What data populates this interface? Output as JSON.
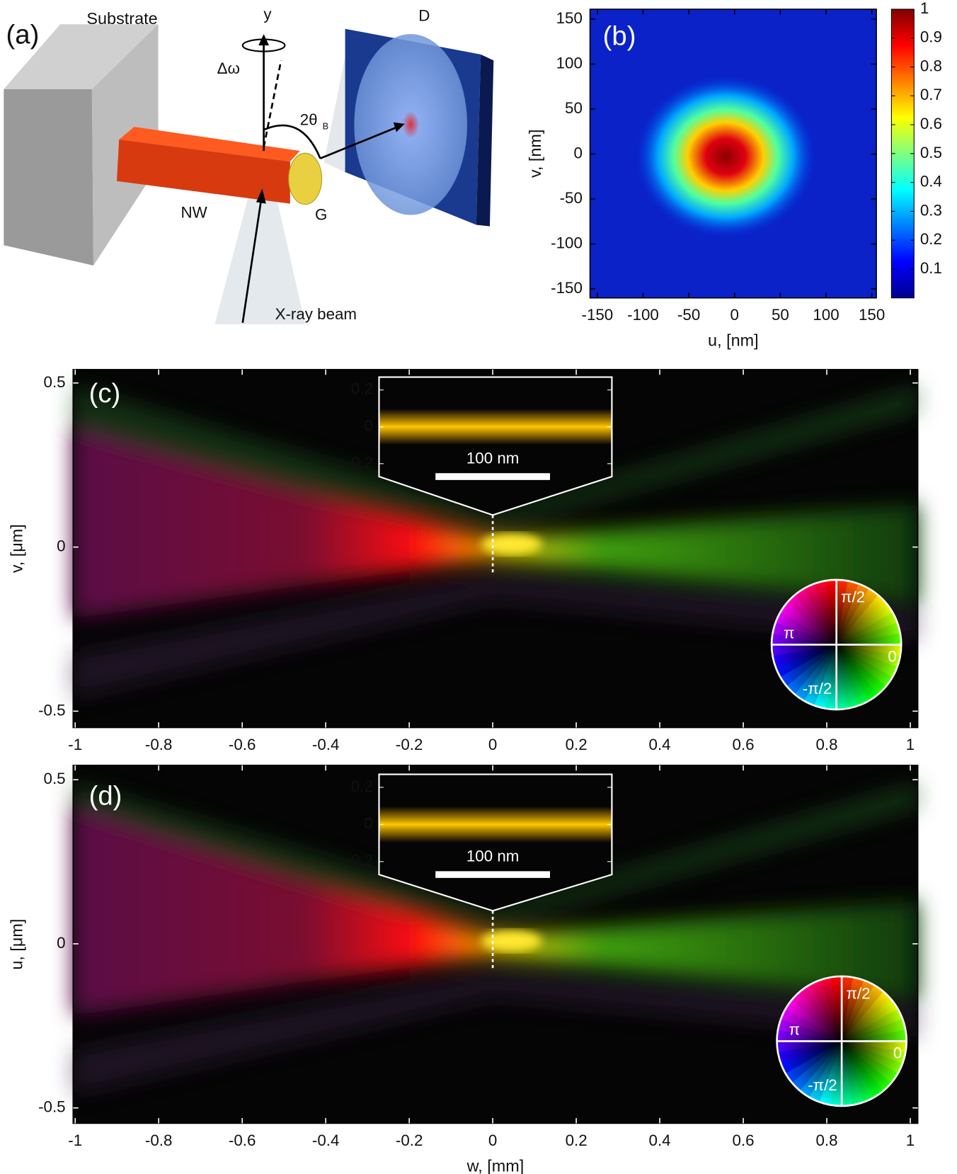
{
  "diagram": {
    "panel_label": "(a)",
    "labels": {
      "substrate": "Substrate",
      "y_axis": "y",
      "rotation": "Δω",
      "angle": "2θ",
      "angle_sub": "B",
      "detector": "D",
      "nanowire": "NW",
      "gold": "G",
      "beam": "X-ray beam"
    }
  },
  "chart_data": [
    {
      "type": "heatmap",
      "panel_label": "(b)",
      "xlabel": "u, [nm]",
      "ylabel": "v, [nm]",
      "xlim": [
        -158,
        155
      ],
      "ylim": [
        -160,
        161
      ],
      "xticks": [
        -150,
        -100,
        -50,
        0,
        50,
        100,
        150
      ],
      "yticks": [
        -150,
        -100,
        -50,
        0,
        50,
        100,
        150
      ],
      "colorbar": {
        "lim": [
          0,
          1
        ],
        "ticks": [
          0.1,
          0.2,
          0.3,
          0.4,
          0.5,
          0.6,
          0.7,
          0.8,
          0.9,
          1
        ]
      }
    },
    {
      "type": "heatmap",
      "panel_label": "(c)",
      "ylabel": "v, [μm]",
      "xlim": [
        -1.005,
        1.018
      ],
      "ylim": [
        -0.55,
        0.541
      ],
      "xticks": [
        -1,
        -0.8,
        -0.6,
        -0.4,
        -0.2,
        0,
        0.2,
        0.4,
        0.6,
        0.8,
        1
      ],
      "yticks": [
        -0.5,
        0,
        0.5
      ],
      "inset": {
        "ylim": [
          -0.27,
          0.27
        ],
        "yticks": [
          -0.2,
          0,
          0.2
        ],
        "scalebar": "100 nm"
      },
      "phase_wheel": {
        "labels": [
          "π/2",
          "π",
          "0",
          "-π/2"
        ]
      }
    },
    {
      "type": "heatmap",
      "panel_label": "(d)",
      "xlabel": "w, [mm]",
      "ylabel": "u, [μm]",
      "xlim": [
        -1.005,
        1.018
      ],
      "ylim": [
        -0.547,
        0.544
      ],
      "xticks": [
        -1,
        -0.8,
        -0.6,
        -0.4,
        -0.2,
        0,
        0.2,
        0.4,
        0.6,
        0.8,
        1
      ],
      "yticks": [
        -0.5,
        0,
        0.5
      ],
      "inset": {
        "ylim": [
          -0.27,
          0.27
        ],
        "yticks": [
          -0.2,
          0,
          0.2
        ],
        "scalebar": "100 nm"
      },
      "phase_wheel": {
        "labels": [
          "π/2",
          "π",
          "0",
          "-π/2"
        ]
      }
    }
  ]
}
